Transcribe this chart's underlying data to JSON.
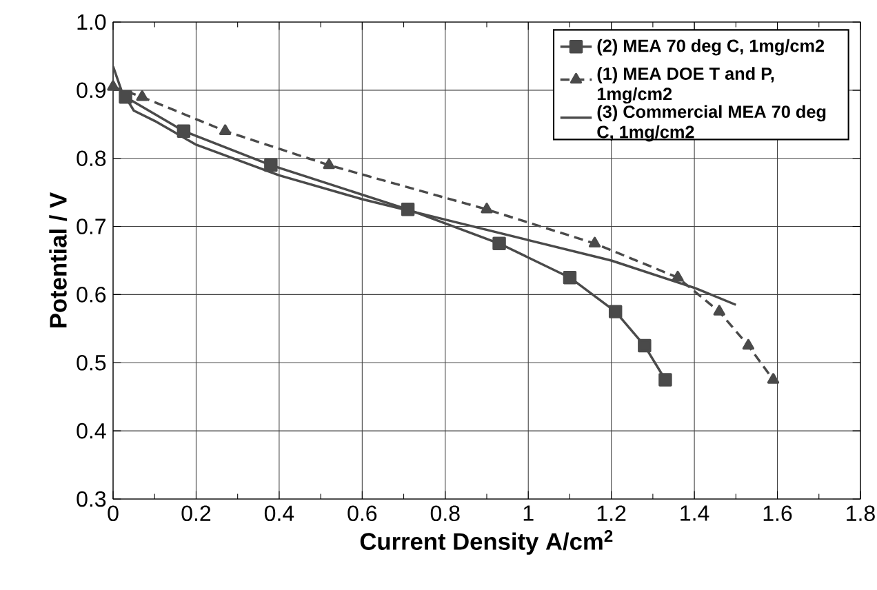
{
  "chart_data": {
    "type": "line",
    "xlabel": "Current Density  A/cm$^{2}$",
    "ylabel": "Potential / V",
    "xlim": [
      0,
      1.8
    ],
    "ylim": [
      0.3,
      1.0
    ],
    "xticks": [
      0,
      0.2,
      0.4,
      0.6,
      0.8,
      1,
      1.2,
      1.4,
      1.6,
      1.8
    ],
    "yticks": [
      0.3,
      0.4,
      0.5,
      0.6,
      0.7,
      0.8,
      0.9,
      {
        "value": 1,
        "label": "1.0"
      }
    ],
    "grid": true,
    "legend": "top right",
    "series": [
      {
        "name": "(2) MEA 70 deg C, 1mg/cm2",
        "color": "#4a4a4a",
        "marker": "square",
        "line_style": "solid",
        "x": [
          0.03,
          0.17,
          0.38,
          0.71,
          0.93,
          1.1,
          1.21,
          1.28,
          1.33
        ],
        "values": [
          0.89,
          0.84,
          0.79,
          0.725,
          0.675,
          0.625,
          0.575,
          0.525,
          0.475
        ]
      },
      {
        "name": "(1) MEA DOE T and P, 1mg/cm2",
        "color": "#4a4a4a",
        "marker": "triangle",
        "line_style": "dashed",
        "x": [
          0,
          0.07,
          0.27,
          0.52,
          0.9,
          1.16,
          1.36,
          1.46,
          1.53,
          1.59
        ],
        "values": [
          0.905,
          0.89,
          0.84,
          0.79,
          0.725,
          0.675,
          0.625,
          0.575,
          0.525,
          0.475
        ]
      },
      {
        "name": "(3) Commercial MEA 70 deg C, 1mg/cm2",
        "color": "#4a4a4a",
        "marker": "none",
        "line_style": "solid",
        "x": [
          0,
          0.02,
          0.05,
          0.1,
          0.2,
          0.4,
          0.6,
          0.8,
          1.0,
          1.2,
          1.4,
          1.5
        ],
        "values": [
          0.935,
          0.9,
          0.87,
          0.855,
          0.82,
          0.775,
          0.74,
          0.71,
          0.68,
          0.65,
          0.61,
          0.585
        ]
      }
    ]
  }
}
